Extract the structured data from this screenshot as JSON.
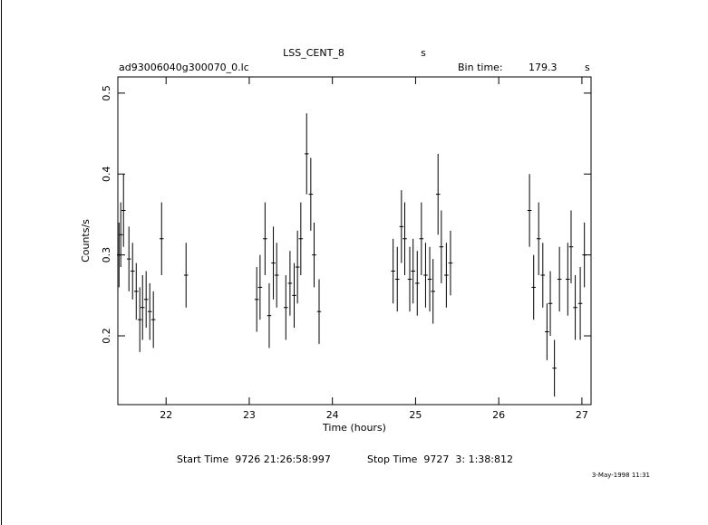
{
  "chart_data": {
    "type": "errorbar",
    "title": "LSS_CENT_8",
    "title_unit": "s",
    "file_name": "ad93006040g300070_0.lc",
    "bin_time_label": "Bin time:",
    "bin_time": 179.3,
    "bin_time_unit": "s",
    "x_label": "Time (hours)",
    "y_label": "Counts/s",
    "start_time": "Start Time  9726 21:26:58:997",
    "stop_time": "Stop Time  9727  3: 1:38:812",
    "date_stamp": "3-May-1998 11:31",
    "color": "#000000",
    "x": [
      21.434,
      21.455,
      21.488,
      21.553,
      21.597,
      21.641,
      21.684,
      21.717,
      21.76,
      21.804,
      21.847,
      21.946,
      22.24,
      23.09,
      23.13,
      23.19,
      23.24,
      23.29,
      23.33,
      23.44,
      23.49,
      23.54,
      23.58,
      23.62,
      23.69,
      23.74,
      23.78,
      23.84,
      24.73,
      24.78,
      24.83,
      24.87,
      24.93,
      24.97,
      25.02,
      25.07,
      25.12,
      25.17,
      25.21,
      25.27,
      25.31,
      25.37,
      25.42,
      26.37,
      26.42,
      26.48,
      26.53,
      26.58,
      26.62,
      26.67,
      26.73,
      26.83,
      26.87,
      26.92,
      26.98,
      27.03
    ],
    "values": [
      0.3,
      0.325,
      0.355,
      0.295,
      0.28,
      0.255,
      0.22,
      0.235,
      0.245,
      0.23,
      0.22,
      0.32,
      0.275,
      0.245,
      0.26,
      0.32,
      0.225,
      0.29,
      0.275,
      0.235,
      0.265,
      0.25,
      0.285,
      0.32,
      0.425,
      0.375,
      0.3,
      0.23,
      0.28,
      0.27,
      0.335,
      0.32,
      0.27,
      0.28,
      0.265,
      0.32,
      0.275,
      0.27,
      0.255,
      0.375,
      0.31,
      0.275,
      0.29,
      0.355,
      0.26,
      0.32,
      0.275,
      0.205,
      0.24,
      0.16,
      0.27,
      0.27,
      0.31,
      0.235,
      0.24,
      0.3
    ],
    "errors": [
      0.04,
      0.04,
      0.045,
      0.04,
      0.035,
      0.035,
      0.04,
      0.04,
      0.035,
      0.035,
      0.035,
      0.045,
      0.04,
      0.04,
      0.04,
      0.045,
      0.04,
      0.045,
      0.04,
      0.04,
      0.04,
      0.04,
      0.045,
      0.045,
      0.05,
      0.045,
      0.04,
      0.04,
      0.04,
      0.04,
      0.045,
      0.045,
      0.04,
      0.04,
      0.04,
      0.045,
      0.04,
      0.04,
      0.04,
      0.05,
      0.045,
      0.04,
      0.04,
      0.045,
      0.04,
      0.045,
      0.04,
      0.035,
      0.04,
      0.035,
      0.04,
      0.045,
      0.045,
      0.04,
      0.045,
      0.04
    ],
    "xerr": 0.025,
    "xlim": [
      21.42,
      27.11
    ],
    "ylim": [
      0.115,
      0.52
    ],
    "xticks": [
      22,
      23,
      24,
      25,
      26,
      27
    ],
    "yticks": [
      0.2,
      0.3,
      0.4,
      0.5
    ]
  }
}
